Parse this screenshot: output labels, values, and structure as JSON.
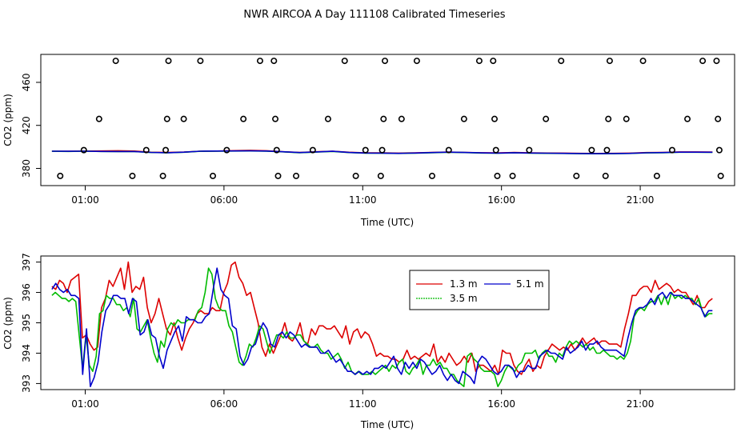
{
  "title": "NWR AIRCOA A  Day 111108  Calibrated Timeseries",
  "chart_data": [
    {
      "type": "scatter",
      "xlabel": "Time (UTC)",
      "ylabel": "CO2 (ppm)",
      "xlim": [
        -0.6,
        24.4
      ],
      "ylim": [
        364,
        486
      ],
      "x_ticks": [
        1,
        6,
        11,
        16,
        21
      ],
      "x_tick_labels": [
        "01:00",
        "06:00",
        "11:00",
        "16:00",
        "21:00"
      ],
      "y_ticks": [
        380,
        420,
        460
      ],
      "y_tick_labels": [
        "380",
        "420",
        "460"
      ],
      "points_hourly": [
        [
          0.1,
          373
        ],
        [
          0.95,
          397
        ],
        [
          1.5,
          426
        ],
        [
          2.1,
          480
        ],
        [
          2.7,
          373
        ],
        [
          3.2,
          397
        ],
        [
          3.8,
          373
        ],
        [
          3.9,
          397
        ],
        [
          3.95,
          426
        ],
        [
          4.0,
          480
        ],
        [
          4.55,
          426
        ],
        [
          5.15,
          480
        ],
        [
          5.6,
          373
        ],
        [
          6.1,
          397
        ],
        [
          6.7,
          426
        ],
        [
          7.3,
          480
        ],
        [
          7.8,
          480
        ],
        [
          7.85,
          426
        ],
        [
          7.9,
          397
        ],
        [
          7.95,
          373
        ],
        [
          8.6,
          373
        ],
        [
          9.2,
          397
        ],
        [
          9.75,
          426
        ],
        [
          10.35,
          480
        ],
        [
          10.75,
          373
        ],
        [
          11.1,
          397
        ],
        [
          11.65,
          373
        ],
        [
          11.7,
          397
        ],
        [
          11.75,
          426
        ],
        [
          11.8,
          480
        ],
        [
          12.4,
          426
        ],
        [
          12.95,
          480
        ],
        [
          13.5,
          373
        ],
        [
          14.1,
          397
        ],
        [
          14.65,
          426
        ],
        [
          15.2,
          480
        ],
        [
          15.7,
          480
        ],
        [
          15.75,
          426
        ],
        [
          15.8,
          397
        ],
        [
          15.85,
          373
        ],
        [
          16.4,
          373
        ],
        [
          17.0,
          397
        ],
        [
          17.6,
          426
        ],
        [
          18.15,
          480
        ],
        [
          18.7,
          373
        ],
        [
          19.25,
          397
        ],
        [
          19.75,
          373
        ],
        [
          19.8,
          397
        ],
        [
          19.85,
          426
        ],
        [
          19.9,
          480
        ],
        [
          20.5,
          426
        ],
        [
          21.1,
          480
        ],
        [
          21.6,
          373
        ],
        [
          22.15,
          397
        ],
        [
          22.7,
          426
        ],
        [
          23.25,
          480
        ],
        [
          23.75,
          480
        ],
        [
          23.8,
          426
        ],
        [
          23.85,
          397
        ],
        [
          23.9,
          373
        ]
      ],
      "series": [
        {
          "name": "1.3 m",
          "color": "#dd0000",
          "values": [
            396,
            396,
            396.1,
            396.2,
            396.4,
            396.1,
            395,
            394.8,
            395.2,
            396,
            396.1,
            396.5,
            396.8,
            396.4,
            395.5,
            394.8,
            395.5,
            396,
            395,
            394.5,
            394.5,
            394.2,
            394.5,
            394.9,
            395.2,
            394.9,
            394.6,
            394.4,
            394.8,
            394.5,
            394.3,
            394.2,
            394,
            393.9,
            394,
            394.2,
            394.7,
            394.9,
            395.3,
            395.3,
            395.2
          ]
        },
        {
          "name": "3.5 m",
          "color": "#00bb00",
          "values": [
            395.9,
            395.8,
            396,
            395.8,
            395.7,
            395.6,
            394.8,
            394.5,
            395,
            395.9,
            396,
            396.1,
            396.2,
            396,
            395.4,
            394.6,
            395.2,
            395.8,
            394.7,
            394.2,
            394.1,
            393.9,
            394.2,
            394.6,
            395,
            394.7,
            394.3,
            394.1,
            394.5,
            394.2,
            394,
            393.9,
            393.7,
            393.6,
            393.7,
            393.9,
            394.4,
            394.6,
            395,
            395,
            394.9
          ]
        },
        {
          "name": "5.1 m",
          "color": "#0000cc",
          "values": [
            396,
            395.9,
            396,
            395.8,
            395.7,
            395.7,
            394.9,
            394.6,
            395.1,
            396,
            396.1,
            396.2,
            396.3,
            396.1,
            395.5,
            394.7,
            395.3,
            395.9,
            394.8,
            394.3,
            394.2,
            394,
            394.3,
            394.7,
            395.1,
            394.8,
            394.4,
            394.2,
            394.6,
            394.3,
            394.1,
            394,
            393.8,
            393.7,
            393.8,
            394,
            394.5,
            394.7,
            395.1,
            395.1,
            395
          ]
        }
      ]
    },
    {
      "type": "line",
      "xlabel": "Time (UTC)",
      "ylabel": "CO2 (ppm)",
      "xlim": [
        -0.6,
        24.4
      ],
      "ylim": [
        392.8,
        397.2
      ],
      "x_ticks": [
        1,
        6,
        11,
        16,
        21
      ],
      "x_tick_labels": [
        "01:00",
        "06:00",
        "11:00",
        "16:00",
        "21:00"
      ],
      "y_ticks": [
        393,
        394,
        395,
        396,
        397
      ],
      "y_tick_labels": [
        "393",
        "394",
        "395",
        "396",
        "397"
      ],
      "legend": {
        "position": "top-right",
        "entries": [
          "1.3 m",
          "5.1 m",
          "3.5 m"
        ]
      },
      "series": [
        {
          "name": "1.3 m",
          "color": "#dd0000",
          "values": [
            396.2,
            396.1,
            396.4,
            396.3,
            396.0,
            396.4,
            396.5,
            396.6,
            394.5,
            394.6,
            394.3,
            394.1,
            394.2,
            395.5,
            395.8,
            396.4,
            396.2,
            396.5,
            396.8,
            396.1,
            397.0,
            396.0,
            396.2,
            396.1,
            396.5,
            395.5,
            395.0,
            395.3,
            395.8,
            395.3,
            394.8,
            394.6,
            395.0,
            394.5,
            394.1,
            394.5,
            394.8,
            395.0,
            395.3,
            395.4,
            395.3,
            395.3,
            395.5,
            395.4,
            395.4,
            396.0,
            396.3,
            396.9,
            397.0,
            396.5,
            396.3,
            395.9,
            396.0,
            395.5,
            395.0,
            394.2,
            393.9,
            394.3,
            394.0,
            394.3,
            394.6,
            395.0,
            394.5,
            394.4,
            394.6,
            395.0,
            394.4,
            394.3,
            394.8,
            394.6,
            394.9,
            394.9,
            394.8,
            394.8,
            394.9,
            394.7,
            394.5,
            394.9,
            394.3,
            394.7,
            394.8,
            394.5,
            394.7,
            394.6,
            394.3,
            393.9,
            394.0,
            393.9,
            393.9,
            393.8,
            393.8,
            393.7,
            393.8,
            394.1,
            393.8,
            393.9,
            393.8,
            393.9,
            394.0,
            393.9,
            394.3,
            393.7,
            393.9,
            393.7,
            394.0,
            393.8,
            393.6,
            393.7,
            393.9,
            393.7,
            394.0,
            393.4,
            393.6,
            393.6,
            393.5,
            393.4,
            393.6,
            393.3,
            394.1,
            394.0,
            394.0,
            393.6,
            393.4,
            393.3,
            393.6,
            393.8,
            393.4,
            393.6,
            393.5,
            393.9,
            394.1,
            394.3,
            394.2,
            394.1,
            394.2,
            394.1,
            394.3,
            394.1,
            394.3,
            394.5,
            394.3,
            394.4,
            394.5,
            394.3,
            394.4,
            394.4,
            394.3,
            394.3,
            394.3,
            394.2,
            394.8,
            395.3,
            395.9,
            395.9,
            396.1,
            396.2,
            396.2,
            396.0,
            396.4,
            396.1,
            396.2,
            396.3,
            396.2,
            396.0,
            396.1,
            396.0,
            396.0,
            395.8,
            395.6,
            395.9,
            395.5,
            395.5,
            395.7,
            395.8
          ]
        },
        {
          "name": "3.5 m",
          "color": "#00bb00",
          "values": [
            395.9,
            396.0,
            395.9,
            395.8,
            395.8,
            395.7,
            395.8,
            395.7,
            394.6,
            393.5,
            394.6,
            393.6,
            393.4,
            393.9,
            395.3,
            395.4,
            395.9,
            395.8,
            395.8,
            395.6,
            395.6,
            395.4,
            395.5,
            395.2,
            395.8,
            394.8,
            394.7,
            394.9,
            395.1,
            394.5,
            394.0,
            393.7,
            394.4,
            394.2,
            394.8,
            395.0,
            394.9,
            395.1,
            395.0,
            395.0,
            395.1,
            395.1,
            395.1,
            395.4,
            395.5,
            396.0,
            396.8,
            396.6,
            395.8,
            395.5,
            395.4,
            395.4,
            394.9,
            394.7,
            394.2,
            393.7,
            393.6,
            393.9,
            394.3,
            394.2,
            394.5,
            394.9,
            394.8,
            394.4,
            394.0,
            394.3,
            394.6,
            394.6,
            394.5,
            394.7,
            394.5,
            394.5,
            394.6,
            394.6,
            394.4,
            394.3,
            394.2,
            394.2,
            394.3,
            394.1,
            394.0,
            394.0,
            393.8,
            393.9,
            394.0,
            393.8,
            393.5,
            393.7,
            393.4,
            393.3,
            393.4,
            393.3,
            393.3,
            393.3,
            393.4,
            393.3,
            393.4,
            393.5,
            393.6,
            393.4,
            393.6,
            393.5,
            393.7,
            393.8,
            393.4,
            393.3,
            393.5,
            393.6,
            393.8,
            393.3,
            393.6,
            393.6,
            393.8,
            393.6,
            393.7,
            393.5,
            393.5,
            393.3,
            393.3,
            393.1,
            393.0,
            392.9,
            393.9,
            394.0,
            393.8,
            393.7,
            393.5,
            393.4,
            393.4,
            393.4,
            393.3,
            392.9,
            393.1,
            393.4,
            393.6,
            393.5,
            393.4,
            393.6,
            393.7,
            394.0,
            394.0,
            394.0,
            394.1,
            393.8,
            394.0,
            394.1,
            393.9,
            393.9,
            393.7,
            394.0,
            393.9,
            394.2,
            394.4,
            394.3,
            394.4,
            394.3,
            394.2,
            394.3,
            394.1,
            394.2,
            394.0,
            394.0,
            394.1,
            394.0,
            393.9,
            393.9,
            393.8,
            393.9,
            393.8,
            394.0,
            394.4,
            395.2,
            395.4,
            395.5,
            395.4,
            395.6,
            395.7,
            395.7,
            395.9,
            395.6,
            395.9,
            395.6,
            396.0,
            395.8,
            395.9,
            395.8,
            395.9,
            395.8,
            395.8,
            395.6,
            395.8,
            395.4,
            395.2,
            395.3,
            395.3
          ]
        },
        {
          "name": "5.1 m",
          "color": "#0000cc",
          "values": [
            396.1,
            396.3,
            396.1,
            396.0,
            396.1,
            395.9,
            395.9,
            395.8,
            393.3,
            394.8,
            392.9,
            393.2,
            393.7,
            394.7,
            395.4,
            395.6,
            395.9,
            395.9,
            395.8,
            395.8,
            395.3,
            395.8,
            395.7,
            394.6,
            394.7,
            395.1,
            394.6,
            394.5,
            393.9,
            393.5,
            394.1,
            394.4,
            394.7,
            394.9,
            394.4,
            395.2,
            395.1,
            395.1,
            395.0,
            395.0,
            395.2,
            395.3,
            396.1,
            396.8,
            396.1,
            395.9,
            395.8,
            394.9,
            394.8,
            393.9,
            393.6,
            393.8,
            394.2,
            394.3,
            394.7,
            395.0,
            394.8,
            394.3,
            394.2,
            394.6,
            394.7,
            394.5,
            394.7,
            394.6,
            394.4,
            394.2,
            394.3,
            394.2,
            394.2,
            394.2,
            394.0,
            394.0,
            394.1,
            393.9,
            393.7,
            393.8,
            393.6,
            393.4,
            393.4,
            393.3,
            393.4,
            393.3,
            393.4,
            393.3,
            393.5,
            393.5,
            393.6,
            393.5,
            393.7,
            393.9,
            393.5,
            393.3,
            393.7,
            393.5,
            393.7,
            393.5,
            393.8,
            393.7,
            393.5,
            393.3,
            393.4,
            393.6,
            393.3,
            393.1,
            393.3,
            393.1,
            393.0,
            393.4,
            393.3,
            393.2,
            393.0,
            393.7,
            393.9,
            393.8,
            393.6,
            393.4,
            393.3,
            393.4,
            393.6,
            393.6,
            393.5,
            393.2,
            393.4,
            393.4,
            393.6,
            393.5,
            393.5,
            393.9,
            394.0,
            394.1,
            394.0,
            394.0,
            393.9,
            393.8,
            394.2,
            394.0,
            394.1,
            394.2,
            394.4,
            394.1,
            394.3,
            394.3,
            394.4,
            394.2,
            394.1,
            394.1,
            394.1,
            394.1,
            394.0,
            393.9,
            394.5,
            395.0,
            395.4,
            395.5,
            395.5,
            395.6,
            395.8,
            395.6,
            395.9,
            396.0,
            395.8,
            396.0,
            395.9,
            395.9,
            395.9,
            395.8,
            395.8,
            395.7,
            395.6,
            395.5,
            395.2,
            395.4,
            395.4
          ]
        }
      ]
    }
  ]
}
